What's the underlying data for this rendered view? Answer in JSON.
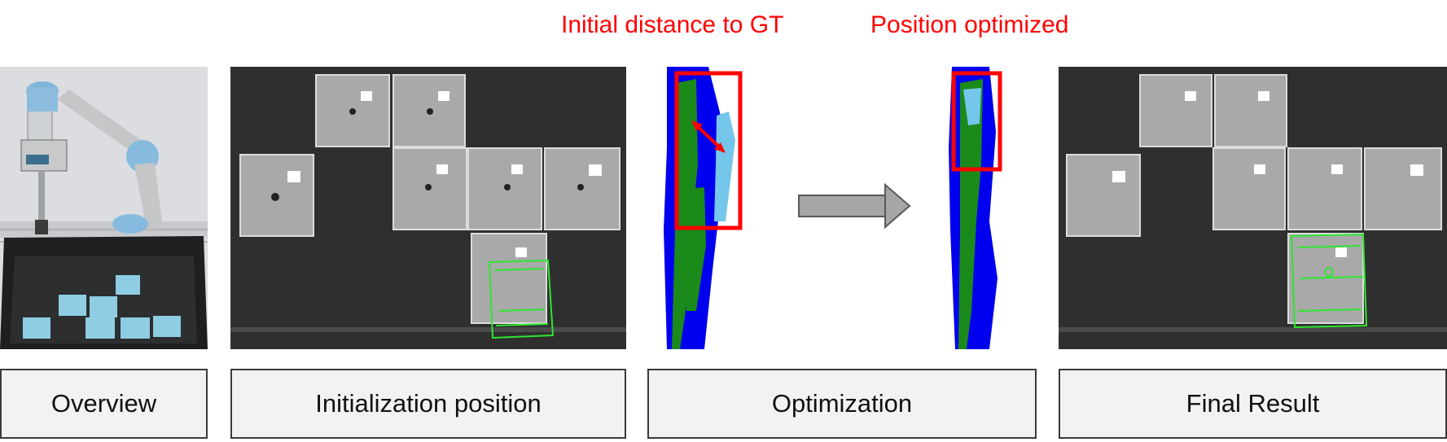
{
  "annotations": {
    "initial_distance": "Initial distance to GT",
    "position_optimized": "Position optimized"
  },
  "stages": [
    {
      "label": "Overview"
    },
    {
      "label": "Initialization position"
    },
    {
      "label": "Optimization"
    },
    {
      "label": "Final Result"
    }
  ],
  "colors": {
    "annotation_red": "#ff0000",
    "label_fill": "#f2f2f2",
    "point_cloud_blue": "#0000ee",
    "point_cloud_green": "#1a8a1a",
    "model_light_blue": "#74c7ea",
    "detection_green": "#2ee62e",
    "arrow_gray": "#a6a6a6"
  },
  "icons": [
    "robot-arm-photo",
    "transition-arrow-icon",
    "distance-arrow-icon"
  ]
}
